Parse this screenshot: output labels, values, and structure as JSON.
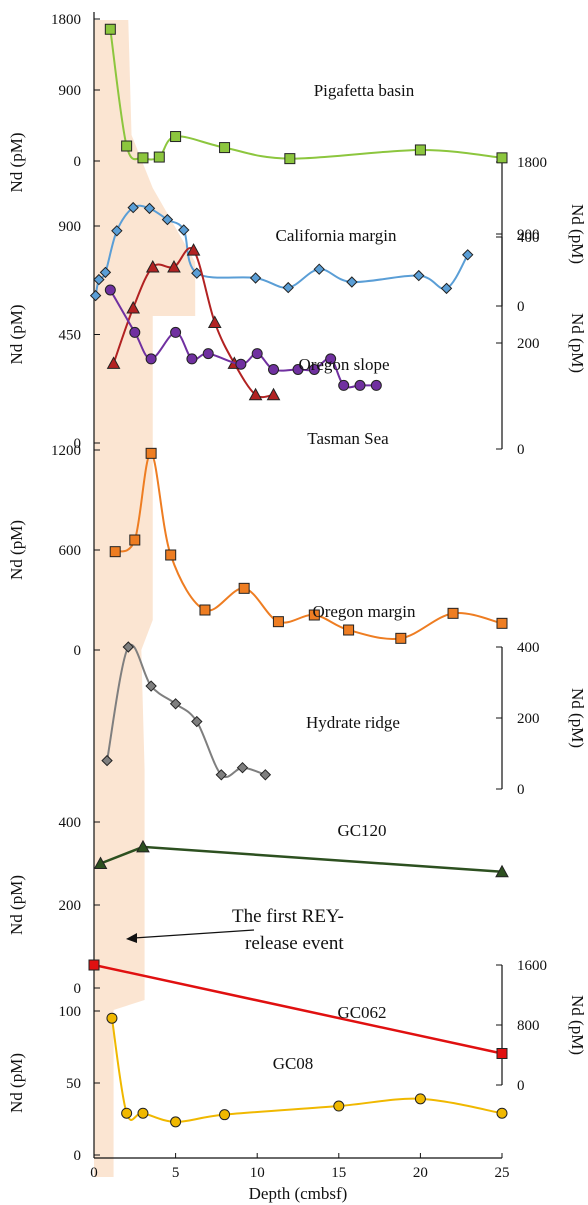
{
  "chart_data": {
    "type": "line",
    "xlabel": "Depth (cmbsf)",
    "xlim": [
      0,
      25
    ],
    "xticks": [
      0,
      5,
      10,
      15,
      20,
      25
    ],
    "shade_color": "#fbe5d2",
    "annotation": {
      "lines": [
        "The first REY-",
        "release event"
      ]
    },
    "y_axis_titles": [
      {
        "side": "left",
        "text": "Nd (pM)",
        "rows": [
          0,
          1
        ]
      },
      {
        "side": "right",
        "text": "Nd (pM)",
        "rows": [
          1,
          1
        ]
      },
      {
        "side": "left",
        "text": "Nd (pM)",
        "rows": [
          2,
          2
        ]
      },
      {
        "side": "right",
        "text": "Nd (pM)",
        "rows": [
          3,
          3
        ]
      },
      {
        "side": "left",
        "text": "Nd (pM)",
        "rows": [
          4,
          4
        ]
      },
      {
        "side": "right",
        "text": "Nd (pM)",
        "rows": [
          5,
          5
        ]
      },
      {
        "side": "left",
        "text": "Nd (pM)",
        "rows": [
          6,
          6
        ]
      },
      {
        "side": "right",
        "text": "Nd (pM)",
        "rows": [
          7,
          7
        ]
      },
      {
        "side": "left",
        "text": "Nd (pM)",
        "rows": [
          8,
          8
        ]
      }
    ],
    "series": [
      {
        "name": "Pigafetta basin",
        "color": "#8cc63e",
        "marker": "square",
        "smooth": true,
        "axis_side": "left",
        "ylim": [
          0,
          1800
        ],
        "yticks": [
          0,
          900,
          1800
        ],
        "x": [
          1,
          2,
          3,
          4,
          5,
          8,
          12,
          20,
          25
        ],
        "values": [
          1670,
          190,
          40,
          50,
          310,
          170,
          30,
          140,
          40
        ]
      },
      {
        "name": "California margin",
        "color": "#5a9ed6",
        "marker": "diamond",
        "smooth": true,
        "axis_side": "right",
        "ylim": [
          0,
          1800
        ],
        "yticks": [
          0,
          900,
          1800
        ],
        "x": [
          0.1,
          0.3,
          0.7,
          1.4,
          2.4,
          3.4,
          4.5,
          5.5,
          6.3,
          9.9,
          11.9,
          13.8,
          15.8,
          19.9,
          21.6,
          22.9
        ],
        "values": [
          130,
          330,
          420,
          940,
          1230,
          1220,
          1080,
          950,
          410,
          350,
          230,
          460,
          300,
          380,
          220,
          640
        ]
      },
      {
        "name": "Oregon slope",
        "color": "#b22222",
        "marker": "triangle",
        "smooth": true,
        "axis_side": "left",
        "ylim": [
          0,
          900
        ],
        "yticks": [
          0,
          450,
          900
        ],
        "x": [
          1.2,
          2.4,
          3.6,
          4.9,
          6.1,
          7.4,
          8.6,
          9.9,
          11.0
        ],
        "values": [
          330,
          560,
          730,
          730,
          800,
          500,
          330,
          200,
          200
        ]
      },
      {
        "name": "Tasman Sea",
        "color": "#7030a0",
        "marker": "circle",
        "smooth": true,
        "axis_side": "right",
        "ylim": [
          0,
          400
        ],
        "yticks": [
          0,
          200,
          400
        ],
        "x": [
          1.0,
          2.5,
          3.5,
          5.0,
          6.0,
          7.0,
          9.0,
          10.0,
          11.0,
          12.5,
          13.5,
          14.5,
          15.3,
          16.3,
          17.3
        ],
        "values": [
          300,
          220,
          170,
          220,
          170,
          180,
          160,
          180,
          150,
          150,
          150,
          170,
          120,
          120,
          120
        ]
      },
      {
        "name": "Oregon margin",
        "color": "#ee7d22",
        "marker": "square",
        "smooth": true,
        "axis_side": "left",
        "ylim": [
          0,
          1200
        ],
        "yticks": [
          0,
          600,
          1200
        ],
        "x": [
          1.3,
          2.5,
          3.5,
          4.7,
          6.8,
          9.2,
          11.3,
          13.5,
          15.6,
          18.8,
          22,
          25
        ],
        "values": [
          590,
          660,
          1180,
          570,
          240,
          370,
          170,
          210,
          120,
          70,
          220,
          160
        ]
      },
      {
        "name": "Hydrate ridge",
        "color": "#7f7f7f",
        "marker": "diamond",
        "smooth": true,
        "axis_side": "right",
        "ylim": [
          0,
          400
        ],
        "yticks": [
          0,
          200,
          400
        ],
        "x": [
          0.8,
          2.1,
          3.5,
          5.0,
          6.3,
          7.8,
          9.1,
          10.5
        ],
        "values": [
          80,
          400,
          290,
          240,
          190,
          40,
          60,
          40
        ]
      },
      {
        "name": "GC120",
        "color": "#2d5020",
        "marker": "triangle",
        "smooth": false,
        "axis_side": "left",
        "ylim": [
          0,
          400
        ],
        "yticks": [
          0,
          200,
          400
        ],
        "x": [
          0.4,
          3.0,
          25
        ],
        "values": [
          300,
          340,
          280
        ]
      },
      {
        "name": "GC062",
        "color": "#e01010",
        "marker": "square",
        "smooth": false,
        "axis_side": "right",
        "ylim": [
          0,
          1600
        ],
        "yticks": [
          0,
          800,
          1600
        ],
        "x": [
          0,
          25
        ],
        "values": [
          1600,
          420
        ]
      },
      {
        "name": "GC08",
        "color": "#f0b800",
        "marker": "circle",
        "smooth": true,
        "axis_side": "left",
        "ylim": [
          0,
          100
        ],
        "yticks": [
          0,
          50,
          100
        ],
        "x": [
          1.1,
          2.0,
          3.0,
          5.0,
          8.0,
          15,
          20,
          25
        ],
        "values": [
          95,
          29,
          29,
          23,
          28,
          34,
          39,
          29
        ]
      }
    ]
  }
}
